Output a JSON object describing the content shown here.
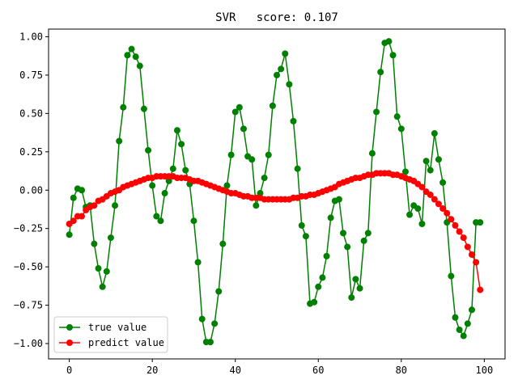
{
  "chart_data": {
    "type": "line",
    "title": "SVR   score: 0.107",
    "xlabel": "",
    "ylabel": "",
    "xlim": [
      -5,
      105
    ],
    "ylim": [
      -1.1,
      1.05
    ],
    "x_ticks": [
      0,
      20,
      40,
      60,
      80,
      100
    ],
    "x_tick_labels": [
      "0",
      "20",
      "40",
      "60",
      "80",
      "100"
    ],
    "y_ticks": [
      -1.0,
      -0.75,
      -0.5,
      -0.25,
      0.0,
      0.25,
      0.5,
      0.75,
      1.0
    ],
    "y_tick_labels": [
      "−1.00",
      "−0.75",
      "−0.50",
      "−0.25",
      "0.00",
      "0.25",
      "0.50",
      "0.75",
      "1.00"
    ],
    "grid": false,
    "legend_position": "lower-left",
    "series": [
      {
        "name": "true value",
        "color": "#008000",
        "marker": "circle",
        "x": [
          0,
          1,
          2,
          3,
          4,
          5,
          6,
          7,
          8,
          9,
          10,
          11,
          12,
          13,
          14,
          15,
          16,
          17,
          18,
          19,
          20,
          21,
          22,
          23,
          24,
          25,
          26,
          27,
          28,
          29,
          30,
          31,
          32,
          33,
          34,
          35,
          36,
          37,
          38,
          39,
          40,
          41,
          42,
          43,
          44,
          45,
          46,
          47,
          48,
          49,
          50,
          51,
          52,
          53,
          54,
          55,
          56,
          57,
          58,
          59,
          60,
          61,
          62,
          63,
          64,
          65,
          66,
          67,
          68,
          69,
          70,
          71,
          72,
          73,
          74,
          75,
          76,
          77,
          78,
          79,
          80,
          81,
          82,
          83,
          84,
          85,
          86,
          87,
          88,
          89,
          90,
          91,
          92,
          93,
          94,
          95,
          96,
          97,
          98,
          99
        ],
        "y": [
          -0.29,
          -0.05,
          0.01,
          0.0,
          -0.11,
          -0.1,
          -0.35,
          -0.51,
          -0.63,
          -0.53,
          -0.31,
          -0.1,
          0.32,
          0.54,
          0.88,
          0.92,
          0.87,
          0.81,
          0.53,
          0.26,
          0.03,
          -0.17,
          -0.2,
          -0.02,
          0.06,
          0.14,
          0.39,
          0.3,
          0.13,
          0.04,
          -0.2,
          -0.47,
          -0.84,
          -0.99,
          -0.99,
          -0.87,
          -0.66,
          -0.35,
          0.03,
          0.23,
          0.51,
          0.54,
          0.4,
          0.22,
          0.2,
          -0.1,
          -0.02,
          0.08,
          0.23,
          0.55,
          0.75,
          0.79,
          0.89,
          0.69,
          0.45,
          0.14,
          -0.23,
          -0.3,
          -0.74,
          -0.73,
          -0.63,
          -0.57,
          -0.43,
          -0.18,
          -0.07,
          -0.06,
          -0.28,
          -0.37,
          -0.7,
          -0.58,
          -0.64,
          -0.33,
          -0.28,
          0.24,
          0.51,
          0.77,
          0.96,
          0.97,
          0.88,
          0.48,
          0.4,
          0.12,
          -0.16,
          -0.1,
          -0.12,
          -0.22,
          0.19,
          0.13,
          0.37,
          0.2,
          0.05,
          -0.21,
          -0.56,
          -0.83,
          -0.91,
          -0.95,
          -0.87,
          -0.78,
          -0.21,
          -0.21
        ]
      },
      {
        "name": "predict value",
        "color": "#ff0000",
        "marker": "circle",
        "x": [
          0,
          1,
          2,
          3,
          4,
          5,
          6,
          7,
          8,
          9,
          10,
          11,
          12,
          13,
          14,
          15,
          16,
          17,
          18,
          19,
          20,
          21,
          22,
          23,
          24,
          25,
          26,
          27,
          28,
          29,
          30,
          31,
          32,
          33,
          34,
          35,
          36,
          37,
          38,
          39,
          40,
          41,
          42,
          43,
          44,
          45,
          46,
          47,
          48,
          49,
          50,
          51,
          52,
          53,
          54,
          55,
          56,
          57,
          58,
          59,
          60,
          61,
          62,
          63,
          64,
          65,
          66,
          67,
          68,
          69,
          70,
          71,
          72,
          73,
          74,
          75,
          76,
          77,
          78,
          79,
          80,
          81,
          82,
          83,
          84,
          85,
          86,
          87,
          88,
          89,
          90,
          91,
          92,
          93,
          94,
          95,
          96,
          97,
          98,
          99
        ],
        "y": [
          -0.22,
          -0.2,
          -0.17,
          -0.17,
          -0.13,
          -0.11,
          -0.1,
          -0.07,
          -0.06,
          -0.04,
          -0.02,
          -0.01,
          0.0,
          0.02,
          0.03,
          0.04,
          0.05,
          0.06,
          0.07,
          0.08,
          0.08,
          0.09,
          0.09,
          0.09,
          0.09,
          0.09,
          0.08,
          0.08,
          0.08,
          0.07,
          0.06,
          0.06,
          0.05,
          0.04,
          0.03,
          0.02,
          0.01,
          0.0,
          -0.01,
          -0.02,
          -0.02,
          -0.03,
          -0.04,
          -0.04,
          -0.05,
          -0.05,
          -0.05,
          -0.06,
          -0.06,
          -0.06,
          -0.06,
          -0.06,
          -0.06,
          -0.06,
          -0.05,
          -0.05,
          -0.04,
          -0.04,
          -0.03,
          -0.03,
          -0.02,
          -0.01,
          0.0,
          0.01,
          0.02,
          0.04,
          0.05,
          0.06,
          0.07,
          0.08,
          0.08,
          0.09,
          0.1,
          0.1,
          0.11,
          0.11,
          0.11,
          0.11,
          0.1,
          0.1,
          0.09,
          0.08,
          0.07,
          0.06,
          0.04,
          0.02,
          -0.01,
          -0.03,
          -0.06,
          -0.09,
          -0.12,
          -0.15,
          -0.19,
          -0.23,
          -0.27,
          -0.31,
          -0.37,
          -0.42,
          -0.47,
          -0.65
        ]
      }
    ]
  }
}
